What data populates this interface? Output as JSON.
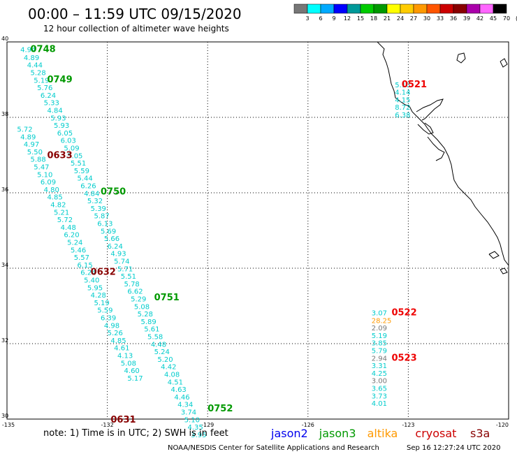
{
  "title": "00:00 – 11:59 UTC 09/15/2020",
  "subtitle": "12 hour collection of altimeter wave heights",
  "colorbar": {
    "colors": [
      "#777777",
      "#00ffff",
      "#00aaff",
      "#0000ff",
      "#009999",
      "#00cc00",
      "#009900",
      "#ffff00",
      "#ffcc00",
      "#ff9900",
      "#ff5500",
      "#cc0000",
      "#880000",
      "#aa00aa",
      "#ff66ff",
      "#000000"
    ],
    "labels": [
      "3",
      "6",
      "9",
      "12",
      "15",
      "18",
      "21",
      "24",
      "27",
      "30",
      "33",
      "36",
      "39",
      "42",
      "45",
      "70",
      "(ft)"
    ]
  },
  "axes": {
    "lat_labels": [
      "40",
      "38",
      "36",
      "34",
      "32",
      "30"
    ],
    "lon_labels": [
      "-135",
      "-132",
      "-129",
      "-126",
      "-123",
      "-120"
    ]
  },
  "tracks": [
    {
      "color": "#00cccc",
      "points": [
        {
          "lon": -134.6,
          "lat": 39.73,
          "v": "4.94"
        },
        {
          "lon": -134.5,
          "lat": 39.52,
          "v": "4.89"
        },
        {
          "lon": -134.4,
          "lat": 39.32,
          "v": "4.44"
        },
        {
          "lon": -134.3,
          "lat": 39.12,
          "v": "5.28"
        },
        {
          "lon": -134.2,
          "lat": 38.92,
          "v": "5.19"
        },
        {
          "lon": -134.1,
          "lat": 38.72,
          "v": "5.76"
        },
        {
          "lon": -134.0,
          "lat": 38.52,
          "v": "6.24"
        },
        {
          "lon": -133.9,
          "lat": 38.32,
          "v": "5.33"
        },
        {
          "lon": -133.8,
          "lat": 38.12,
          "v": "4.84"
        },
        {
          "lon": -133.7,
          "lat": 37.92,
          "v": "5.93"
        },
        {
          "lon": -133.6,
          "lat": 37.72,
          "v": "5.93"
        },
        {
          "lon": -133.5,
          "lat": 37.52,
          "v": "6.05"
        },
        {
          "lon": -133.4,
          "lat": 37.32,
          "v": "6.03"
        },
        {
          "lon": -133.3,
          "lat": 37.12,
          "v": "5.09"
        },
        {
          "lon": -133.2,
          "lat": 36.92,
          "v": "5.05"
        },
        {
          "lon": -133.1,
          "lat": 36.72,
          "v": "5.51"
        },
        {
          "lon": -133.0,
          "lat": 36.52,
          "v": "5.59"
        },
        {
          "lon": -132.9,
          "lat": 36.32,
          "v": "5.44"
        },
        {
          "lon": -132.8,
          "lat": 36.12,
          "v": "6.26"
        },
        {
          "lon": -132.7,
          "lat": 35.92,
          "v": "4.84"
        },
        {
          "lon": -132.6,
          "lat": 35.72,
          "v": "5.32"
        },
        {
          "lon": -132.5,
          "lat": 35.52,
          "v": "5.39"
        },
        {
          "lon": -132.4,
          "lat": 35.32,
          "v": "5.87"
        },
        {
          "lon": -132.3,
          "lat": 35.12,
          "v": "6.13"
        },
        {
          "lon": -132.2,
          "lat": 34.92,
          "v": "5.69"
        },
        {
          "lon": -132.1,
          "lat": 34.72,
          "v": "5.66"
        },
        {
          "lon": -132.0,
          "lat": 34.52,
          "v": "6.24"
        },
        {
          "lon": -131.9,
          "lat": 34.32,
          "v": "4.93"
        },
        {
          "lon": -131.8,
          "lat": 34.12,
          "v": "5.74"
        },
        {
          "lon": -131.7,
          "lat": 33.92,
          "v": "5.71"
        },
        {
          "lon": -131.6,
          "lat": 33.72,
          "v": "5.51"
        },
        {
          "lon": -131.5,
          "lat": 33.52,
          "v": "5.78"
        },
        {
          "lon": -131.4,
          "lat": 33.32,
          "v": "6.62"
        },
        {
          "lon": -131.3,
          "lat": 33.12,
          "v": "5.29"
        },
        {
          "lon": -131.2,
          "lat": 32.92,
          "v": "5.08"
        },
        {
          "lon": -131.1,
          "lat": 32.72,
          "v": "5.28"
        },
        {
          "lon": -131.0,
          "lat": 32.52,
          "v": "5.89"
        },
        {
          "lon": -130.9,
          "lat": 32.32,
          "v": "5.61"
        },
        {
          "lon": -130.8,
          "lat": 32.12,
          "v": "5.58"
        },
        {
          "lon": -130.7,
          "lat": 31.92,
          "v": "4.48"
        },
        {
          "lon": -130.6,
          "lat": 31.72,
          "v": "5.24"
        },
        {
          "lon": -130.5,
          "lat": 31.52,
          "v": "5.20"
        },
        {
          "lon": -130.4,
          "lat": 31.32,
          "v": "4.42"
        },
        {
          "lon": -130.3,
          "lat": 31.12,
          "v": "4.08"
        },
        {
          "lon": -130.2,
          "lat": 30.92,
          "v": "4.51"
        },
        {
          "lon": -130.1,
          "lat": 30.72,
          "v": "4.63"
        },
        {
          "lon": -130.0,
          "lat": 30.52,
          "v": "4.46"
        },
        {
          "lon": -129.9,
          "lat": 30.32,
          "v": "4.34"
        },
        {
          "lon": -129.8,
          "lat": 30.12,
          "v": "3.74"
        },
        {
          "lon": -129.7,
          "lat": 29.92,
          "v": "5.10"
        },
        {
          "lon": -129.6,
          "lat": 29.72,
          "v": "4.35"
        },
        {
          "lon": -129.5,
          "lat": 29.52,
          "v": "3.95"
        }
      ]
    },
    {
      "color": "#00cccc",
      "points": [
        {
          "lon": -134.7,
          "lat": 37.62,
          "v": "5.72"
        },
        {
          "lon": -134.6,
          "lat": 37.42,
          "v": "4.89"
        },
        {
          "lon": -134.5,
          "lat": 37.22,
          "v": "4.97"
        },
        {
          "lon": -134.4,
          "lat": 37.02,
          "v": "5.50"
        },
        {
          "lon": -134.3,
          "lat": 36.82,
          "v": "5.88"
        },
        {
          "lon": -134.2,
          "lat": 36.62,
          "v": "5.47"
        },
        {
          "lon": -134.1,
          "lat": 36.42,
          "v": "5.10"
        },
        {
          "lon": -134.0,
          "lat": 36.22,
          "v": "6.09"
        },
        {
          "lon": -133.9,
          "lat": 36.02,
          "v": "4.80"
        },
        {
          "lon": -133.8,
          "lat": 35.82,
          "v": "4.85"
        },
        {
          "lon": -133.7,
          "lat": 35.62,
          "v": "4.82"
        },
        {
          "lon": -133.6,
          "lat": 35.42,
          "v": "5.21"
        },
        {
          "lon": -133.5,
          "lat": 35.22,
          "v": "5.72"
        },
        {
          "lon": -133.4,
          "lat": 35.02,
          "v": "4.48"
        },
        {
          "lon": -133.3,
          "lat": 34.82,
          "v": "6.20"
        },
        {
          "lon": -133.2,
          "lat": 34.62,
          "v": "5.24"
        },
        {
          "lon": -133.1,
          "lat": 34.42,
          "v": "5.46"
        },
        {
          "lon": -133.0,
          "lat": 34.22,
          "v": "5.57"
        },
        {
          "lon": -132.9,
          "lat": 34.02,
          "v": "6.15"
        },
        {
          "lon": -132.8,
          "lat": 33.82,
          "v": "6.24"
        },
        {
          "lon": -132.7,
          "lat": 33.62,
          "v": "5.40"
        },
        {
          "lon": -132.6,
          "lat": 33.42,
          "v": "5.95"
        },
        {
          "lon": -132.5,
          "lat": 33.22,
          "v": "4.28"
        },
        {
          "lon": -132.4,
          "lat": 33.02,
          "v": "5.19"
        },
        {
          "lon": -132.3,
          "lat": 32.82,
          "v": "5.59"
        },
        {
          "lon": -132.2,
          "lat": 32.62,
          "v": "6.39"
        },
        {
          "lon": -132.1,
          "lat": 32.42,
          "v": "4.98"
        },
        {
          "lon": -132.0,
          "lat": 32.22,
          "v": "5.26"
        },
        {
          "lon": -131.9,
          "lat": 32.02,
          "v": "4.85"
        },
        {
          "lon": -131.8,
          "lat": 31.82,
          "v": "4.61"
        },
        {
          "lon": -131.7,
          "lat": 31.62,
          "v": "4.13"
        },
        {
          "lon": -131.6,
          "lat": 31.42,
          "v": "5.08"
        },
        {
          "lon": -131.5,
          "lat": 31.22,
          "v": "4.60"
        },
        {
          "lon": -131.4,
          "lat": 31.02,
          "v": "5.17"
        }
      ]
    },
    {
      "color": "#00cccc",
      "points": [
        {
          "lon": -123.4,
          "lat": 38.8,
          "v": "5.10"
        },
        {
          "lon": -123.4,
          "lat": 38.6,
          "v": "4.14"
        },
        {
          "lon": -123.4,
          "lat": 38.4,
          "v": "4.15"
        },
        {
          "lon": -123.4,
          "lat": 38.2,
          "v": "8.72"
        },
        {
          "lon": -123.4,
          "lat": 38.0,
          "v": "6.38"
        }
      ]
    },
    {
      "color": "#00cccc",
      "points": [
        {
          "lon": -124.1,
          "lat": 32.75,
          "v": "3.07",
          "c": "#00cccc"
        },
        {
          "lon": -124.1,
          "lat": 32.55,
          "v": "28.25",
          "c": "#ff9900"
        },
        {
          "lon": -124.1,
          "lat": 32.35,
          "v": "2.09",
          "c": "#777777"
        },
        {
          "lon": -124.1,
          "lat": 32.15,
          "v": "5.19",
          "c": "#00cccc"
        },
        {
          "lon": -124.1,
          "lat": 31.95,
          "v": "3.85",
          "c": "#00cccc"
        },
        {
          "lon": -124.1,
          "lat": 31.75,
          "v": "5.79",
          "c": "#00cccc"
        },
        {
          "lon": -124.1,
          "lat": 31.55,
          "v": "2.94",
          "c": "#777777"
        },
        {
          "lon": -124.1,
          "lat": 31.35,
          "v": "3.31",
          "c": "#00cccc"
        },
        {
          "lon": -124.1,
          "lat": 31.15,
          "v": "4.25",
          "c": "#00cccc"
        },
        {
          "lon": -124.1,
          "lat": 30.95,
          "v": "3.00",
          "c": "#777777"
        },
        {
          "lon": -124.1,
          "lat": 30.75,
          "v": "3.65",
          "c": "#00cccc"
        },
        {
          "lon": -124.1,
          "lat": 30.55,
          "v": "3.73",
          "c": "#00cccc"
        },
        {
          "lon": -124.1,
          "lat": 30.35,
          "v": "4.01",
          "c": "#00cccc"
        }
      ]
    }
  ],
  "pass_times": [
    {
      "lon": -134.3,
      "lat": 39.73,
      "t": "0748",
      "color": "#009900"
    },
    {
      "lon": -133.8,
      "lat": 38.93,
      "t": "0749",
      "color": "#009900"
    },
    {
      "lon": -132.2,
      "lat": 35.95,
      "t": "0750",
      "color": "#009900"
    },
    {
      "lon": -130.6,
      "lat": 33.15,
      "t": "0751",
      "color": "#009900"
    },
    {
      "lon": -129.0,
      "lat": 30.2,
      "t": "0752",
      "color": "#009900"
    },
    {
      "lon": -133.8,
      "lat": 36.92,
      "t": "0633",
      "color": "#880000"
    },
    {
      "lon": -132.5,
      "lat": 33.82,
      "t": "0632",
      "color": "#880000"
    },
    {
      "lon": -131.9,
      "lat": 29.91,
      "t": "0631",
      "color": "#880000"
    },
    {
      "lon": -123.2,
      "lat": 38.8,
      "t": "0521",
      "color": "#ee0000"
    },
    {
      "lon": -123.5,
      "lat": 32.75,
      "t": "0522",
      "color": "#ee0000"
    },
    {
      "lon": -123.5,
      "lat": 31.55,
      "t": "0523",
      "color": "#ee0000"
    }
  ],
  "footer_note": "note:  1) Time is in UTC;  2) SWH is in feet",
  "satellites": [
    {
      "name": "jason2",
      "color": "#0000ee"
    },
    {
      "name": "jason3",
      "color": "#009900"
    },
    {
      "name": "altika",
      "color": "#ff9900"
    },
    {
      "name": "cryosat",
      "color": "#cc0000"
    },
    {
      "name": "s3a",
      "color": "#880000"
    }
  ],
  "credit": "NOAA/NESDIS Center for Satellite Applications and Research",
  "timestamp": "Sep 16 12:27:24 UTC 2020"
}
